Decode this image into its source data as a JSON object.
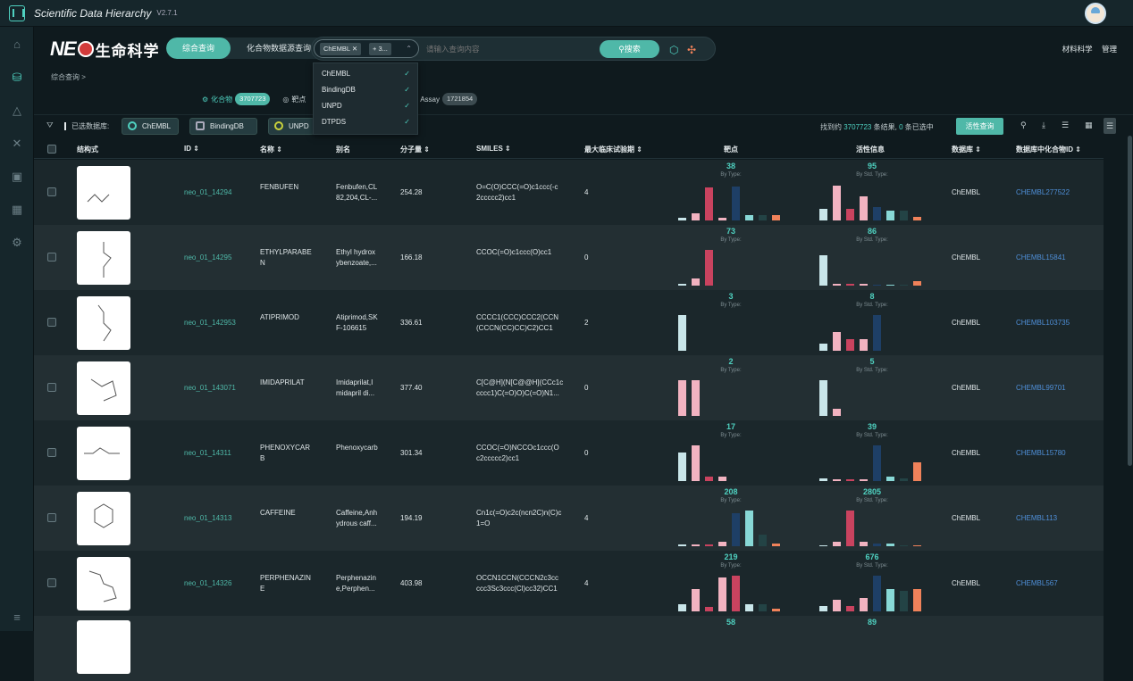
{
  "app": {
    "title": "Scientific Data Hierarchy",
    "version": "V2.7.1"
  },
  "brand": {
    "logo_text": "NE",
    "cn": "生命科学"
  },
  "mode_tabs": [
    {
      "label": "综合查询",
      "active": true
    },
    {
      "label": "化合物数据源查询",
      "active": false
    }
  ],
  "search": {
    "chips": [
      "ChEMBL",
      "+ 3..."
    ],
    "placeholder": "请输入查询内容",
    "button": "搜索"
  },
  "header_right": [
    "材料科学",
    "管理"
  ],
  "breadcrumb": "综合查询 >",
  "db_dropdown": [
    "ChEMBL",
    "BindingDB",
    "UNPD",
    "DTPDS"
  ],
  "tabs": [
    {
      "label": "化合物",
      "count": "3707723",
      "active": true
    },
    {
      "label": "靶点",
      "count": "",
      "active": false
    },
    {
      "label": "Assay",
      "count": "1721854",
      "active": false
    }
  ],
  "toolbar": {
    "label": "已选数据库:",
    "chips": [
      "ChEMBL",
      "BindingDB",
      "UNPD"
    ],
    "found_prefix": "找到约",
    "found_count": "3707723",
    "found_mid": "条结果,",
    "selected_count": "0",
    "found_suffix": "条已选中",
    "action_button": "活性查询"
  },
  "columns": [
    "结构式",
    "ID ⇕",
    "名称 ⇕",
    "别名",
    "分子量 ⇕",
    "SMILES ⇕",
    "最大临床试验期 ⇕",
    "靶点",
    "活性信息",
    "数据库 ⇕",
    "数据库中化合物ID ⇕"
  ],
  "colors": {
    "teal": "#4fb8a8",
    "pink": "#f2b3c1",
    "red": "#c9435f",
    "lightblue": "#c9e6ea",
    "navy": "#1e3f66",
    "cyan": "#88d8d6",
    "darkteal": "#234345",
    "orange": "#f0825a"
  },
  "rows": [
    {
      "id": "neo_01_14294",
      "name": "FENBUFEN",
      "alias": "Fenbufen,CL\n82,204,CL-...",
      "mw": "254.28",
      "smiles": "O=C(O)CCC(=O)c1ccc(-c\n2ccccc2)cc1",
      "phase": "4",
      "db": "ChEMBL",
      "dbid": "CHEMBL277522",
      "target": {
        "count": "38",
        "sub": "By Type:",
        "bars": [
          [
            0.08,
            "lightblue"
          ],
          [
            0.2,
            "pink"
          ],
          [
            0.88,
            "red"
          ],
          [
            0.08,
            "pink"
          ],
          [
            0.9,
            "navy"
          ],
          [
            0.15,
            "cyan"
          ],
          [
            0.15,
            "darkteal"
          ],
          [
            0.15,
            "orange"
          ]
        ]
      },
      "activity": {
        "count": "95",
        "sub": "By Std. Type:",
        "bars": [
          [
            0.3,
            "lightblue"
          ],
          [
            0.92,
            "pink"
          ],
          [
            0.3,
            "red"
          ],
          [
            0.65,
            "pink"
          ],
          [
            0.35,
            "navy"
          ],
          [
            0.25,
            "cyan"
          ],
          [
            0.25,
            "darkteal"
          ],
          [
            0.1,
            "orange"
          ]
        ]
      }
    },
    {
      "id": "neo_01_14295",
      "name": "ETHYLPARABE\nN",
      "alias": "Ethyl hydrox\nybenzoate,...",
      "mw": "166.18",
      "smiles": "CCOC(=O)c1ccc(O)cc1",
      "phase": "0",
      "db": "ChEMBL",
      "dbid": "CHEMBL15841",
      "target": {
        "count": "73",
        "sub": "By Type:",
        "bars": [
          [
            0.05,
            "lightblue"
          ],
          [
            0.18,
            "pink"
          ],
          [
            0.95,
            "red"
          ],
          [
            0,
            "pink"
          ],
          [
            0,
            "navy"
          ],
          [
            0,
            "cyan"
          ],
          [
            0,
            "darkteal"
          ],
          [
            0,
            "orange"
          ]
        ]
      },
      "activity": {
        "count": "86",
        "sub": "By Std. Type:",
        "bars": [
          [
            0.8,
            "lightblue"
          ],
          [
            0.05,
            "pink"
          ],
          [
            0.05,
            "red"
          ],
          [
            0.05,
            "pink"
          ],
          [
            0.02,
            "navy"
          ],
          [
            0.02,
            "cyan"
          ],
          [
            0.02,
            "darkteal"
          ],
          [
            0.12,
            "orange"
          ]
        ]
      }
    },
    {
      "id": "neo_01_142953",
      "name": "ATIPRIMOD",
      "alias": "Atiprimod,SK\nF-106615",
      "mw": "336.61",
      "smiles": "CCCC1(CCC)CCC2(CCN\n(CCCN(CC)CC)C2)CC1",
      "phase": "2",
      "db": "ChEMBL",
      "dbid": "CHEMBL103735",
      "target": {
        "count": "3",
        "sub": "By Type:",
        "bars": [
          [
            0.95,
            "lightblue"
          ],
          [
            0,
            "pink"
          ],
          [
            0,
            "red"
          ],
          [
            0,
            "pink"
          ],
          [
            0,
            "navy"
          ],
          [
            0,
            "cyan"
          ],
          [
            0,
            "darkteal"
          ],
          [
            0,
            "orange"
          ]
        ]
      },
      "activity": {
        "count": "8",
        "sub": "By Std. Type:",
        "bars": [
          [
            0.2,
            "lightblue"
          ],
          [
            0.5,
            "pink"
          ],
          [
            0.3,
            "red"
          ],
          [
            0.3,
            "pink"
          ],
          [
            0.95,
            "navy"
          ],
          [
            0,
            "cyan"
          ],
          [
            0,
            "darkteal"
          ],
          [
            0,
            "orange"
          ]
        ]
      }
    },
    {
      "id": "neo_01_143071",
      "name": "IMIDAPRILAT",
      "alias": "Imidaprilat,I\nmidapril di...",
      "mw": "377.40",
      "smiles": "C[C@H](N[C@@H](CCc1c\ncccc1)C(=O)O)C(=O)N1...",
      "phase": "0",
      "db": "ChEMBL",
      "dbid": "CHEMBL99701",
      "target": {
        "count": "2",
        "sub": "By Type:",
        "bars": [
          [
            0.95,
            "pink"
          ],
          [
            0.95,
            "pink"
          ],
          [
            0,
            "red"
          ],
          [
            0,
            "pink"
          ],
          [
            0,
            "navy"
          ],
          [
            0,
            "cyan"
          ],
          [
            0,
            "darkteal"
          ],
          [
            0,
            "orange"
          ]
        ]
      },
      "activity": {
        "count": "5",
        "sub": "By Std. Type:",
        "bars": [
          [
            0.95,
            "lightblue"
          ],
          [
            0.2,
            "pink"
          ],
          [
            0,
            "red"
          ],
          [
            0,
            "pink"
          ],
          [
            0,
            "navy"
          ],
          [
            0,
            "cyan"
          ],
          [
            0,
            "darkteal"
          ],
          [
            0,
            "orange"
          ]
        ]
      }
    },
    {
      "id": "neo_01_14311",
      "name": "PHENOXYCAR\nB",
      "alias": "Phenoxycarb",
      "mw": "301.34",
      "smiles": "CCOC(=O)NCCOc1ccc(O\nc2ccccc2)cc1",
      "phase": "0",
      "db": "ChEMBL",
      "dbid": "CHEMBL15780",
      "target": {
        "count": "17",
        "sub": "By Type:",
        "bars": [
          [
            0.75,
            "lightblue"
          ],
          [
            0.95,
            "pink"
          ],
          [
            0.12,
            "red"
          ],
          [
            0.12,
            "pink"
          ],
          [
            0,
            "navy"
          ],
          [
            0,
            "cyan"
          ],
          [
            0,
            "darkteal"
          ],
          [
            0,
            "orange"
          ]
        ]
      },
      "activity": {
        "count": "39",
        "sub": "By Std. Type:",
        "bars": [
          [
            0.06,
            "lightblue"
          ],
          [
            0.04,
            "pink"
          ],
          [
            0.04,
            "red"
          ],
          [
            0.04,
            "pink"
          ],
          [
            0.95,
            "navy"
          ],
          [
            0.12,
            "cyan"
          ],
          [
            0.06,
            "darkteal"
          ],
          [
            0.5,
            "orange"
          ]
        ]
      }
    },
    {
      "id": "neo_01_14313",
      "name": "CAFFEINE",
      "alias": "Caffeine,Anh\nydrous caff...",
      "mw": "194.19",
      "smiles": "Cn1c(=O)c2c(ncn2C)n(C)c\n1=O",
      "phase": "4",
      "db": "ChEMBL",
      "dbid": "CHEMBL113",
      "target": {
        "count": "208",
        "sub": "By Type:",
        "bars": [
          [
            0.04,
            "lightblue"
          ],
          [
            0.04,
            "pink"
          ],
          [
            0.04,
            "red"
          ],
          [
            0.12,
            "pink"
          ],
          [
            0.88,
            "navy"
          ],
          [
            0.95,
            "cyan"
          ],
          [
            0.3,
            "darkteal"
          ],
          [
            0.08,
            "orange"
          ]
        ]
      },
      "activity": {
        "count": "2805",
        "sub": "By Std. Type:",
        "bars": [
          [
            0.02,
            "lightblue"
          ],
          [
            0.12,
            "pink"
          ],
          [
            0.95,
            "red"
          ],
          [
            0.12,
            "pink"
          ],
          [
            0.06,
            "navy"
          ],
          [
            0.06,
            "cyan"
          ],
          [
            0.02,
            "darkteal"
          ],
          [
            0.02,
            "orange"
          ]
        ]
      }
    },
    {
      "id": "neo_01_14326",
      "name": "PERPHENAZIN\nE",
      "alias": "Perphenazin\ne,Perphen...",
      "mw": "403.98",
      "smiles": "OCCN1CCN(CCCN2c3cc\nccc3Sc3ccc(Cl)cc32)CC1",
      "phase": "4",
      "db": "ChEMBL",
      "dbid": "CHEMBL567",
      "target": {
        "count": "219",
        "sub": "By Type:",
        "bars": [
          [
            0.2,
            "lightblue"
          ],
          [
            0.6,
            "pink"
          ],
          [
            0.12,
            "red"
          ],
          [
            0.9,
            "pink"
          ],
          [
            0.95,
            "red"
          ],
          [
            0.2,
            "lightblue"
          ],
          [
            0.2,
            "darkteal"
          ],
          [
            0.08,
            "orange"
          ]
        ]
      },
      "activity": {
        "count": "676",
        "sub": "By Std. Type:",
        "bars": [
          [
            0.15,
            "lightblue"
          ],
          [
            0.3,
            "pink"
          ],
          [
            0.15,
            "red"
          ],
          [
            0.35,
            "pink"
          ],
          [
            0.95,
            "navy"
          ],
          [
            0.6,
            "cyan"
          ],
          [
            0.55,
            "darkteal"
          ],
          [
            0.6,
            "orange"
          ]
        ]
      }
    },
    {
      "id": "",
      "name": "",
      "alias": "",
      "mw": "",
      "smiles": "",
      "phase": "",
      "db": "",
      "dbid": "",
      "target": {
        "count": "58",
        "sub": "",
        "bars": []
      },
      "activity": {
        "count": "89",
        "sub": "",
        "bars": []
      }
    }
  ]
}
